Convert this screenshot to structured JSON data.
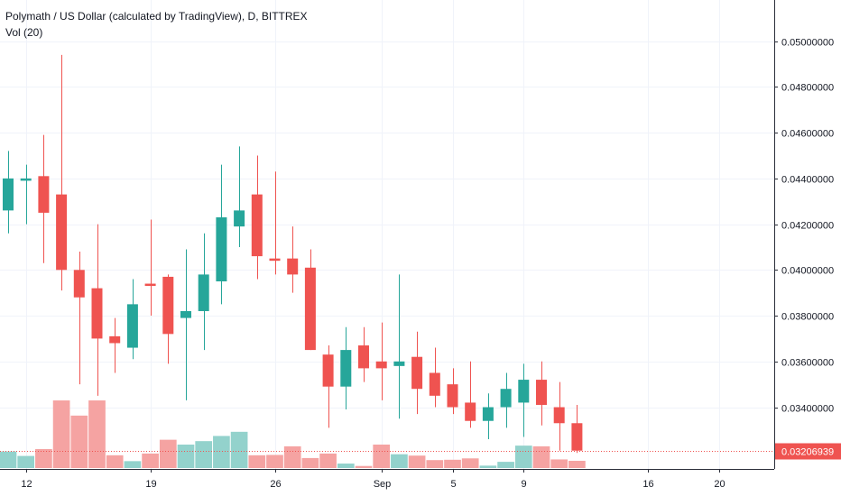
{
  "header": {
    "title": "Polymath / US Dollar (calculated by TradingView), D, BITTREX",
    "volume_label": "Vol (20)"
  },
  "colors": {
    "up": "#26a69a",
    "down": "#ef5350",
    "up_volume": "#93d2cc",
    "down_volume": "#f5a3a2",
    "grid": "#f0f3fa",
    "axis_line": "#2a2e39",
    "last_price_bg": "#ef5350"
  },
  "chart_data": {
    "type": "candlestick",
    "series": [
      {
        "name": "Polymath / US Dollar (calculated by TradingView), D, BITTREX",
        "data": [
          {
            "o": 0.0426,
            "h": 0.0452,
            "l": 0.0416,
            "c": 0.044,
            "v": 0.48
          },
          {
            "o": 0.0439,
            "h": 0.0446,
            "l": 0.042,
            "c": 0.044,
            "v": 0.35
          },
          {
            "o": 0.0441,
            "h": 0.0459,
            "l": 0.0403,
            "c": 0.0425,
            "v": 0.55
          },
          {
            "o": 0.0433,
            "h": 0.0494,
            "l": 0.0391,
            "c": 0.04,
            "v": 1.96
          },
          {
            "o": 0.04,
            "h": 0.0408,
            "l": 0.035,
            "c": 0.0388,
            "v": 1.52
          },
          {
            "o": 0.0392,
            "h": 0.042,
            "l": 0.0345,
            "c": 0.037,
            "v": 1.96
          },
          {
            "o": 0.0371,
            "h": 0.0379,
            "l": 0.0355,
            "c": 0.0368,
            "v": 0.37
          },
          {
            "o": 0.0366,
            "h": 0.0396,
            "l": 0.0361,
            "c": 0.0385,
            "v": 0.2
          },
          {
            "o": 0.0394,
            "h": 0.0422,
            "l": 0.038,
            "c": 0.0393,
            "v": 0.42
          },
          {
            "o": 0.0397,
            "h": 0.0398,
            "l": 0.0359,
            "c": 0.0372,
            "v": 0.82
          },
          {
            "o": 0.0379,
            "h": 0.0409,
            "l": 0.0343,
            "c": 0.0382,
            "v": 0.68
          },
          {
            "o": 0.0382,
            "h": 0.0416,
            "l": 0.0365,
            "c": 0.0398,
            "v": 0.78
          },
          {
            "o": 0.0395,
            "h": 0.0446,
            "l": 0.0385,
            "c": 0.0423,
            "v": 0.93
          },
          {
            "o": 0.0419,
            "h": 0.0454,
            "l": 0.041,
            "c": 0.0426,
            "v": 1.05
          },
          {
            "o": 0.0433,
            "h": 0.045,
            "l": 0.0396,
            "c": 0.0406,
            "v": 0.37
          },
          {
            "o": 0.0405,
            "h": 0.0443,
            "l": 0.0398,
            "c": 0.0404,
            "v": 0.38
          },
          {
            "o": 0.0405,
            "h": 0.0419,
            "l": 0.039,
            "c": 0.0398,
            "v": 0.63
          },
          {
            "o": 0.0401,
            "h": 0.0409,
            "l": 0.0365,
            "c": 0.0365,
            "v": 0.29
          },
          {
            "o": 0.0363,
            "h": 0.0367,
            "l": 0.0331,
            "c": 0.0349,
            "v": 0.42
          },
          {
            "o": 0.0349,
            "h": 0.0375,
            "l": 0.0339,
            "c": 0.0365,
            "v": 0.13
          },
          {
            "o": 0.0367,
            "h": 0.0375,
            "l": 0.0351,
            "c": 0.0357,
            "v": 0.06
          },
          {
            "o": 0.036,
            "h": 0.0377,
            "l": 0.0343,
            "c": 0.0357,
            "v": 0.68
          },
          {
            "o": 0.0358,
            "h": 0.0398,
            "l": 0.0335,
            "c": 0.036,
            "v": 0.4
          },
          {
            "o": 0.0362,
            "h": 0.0373,
            "l": 0.0337,
            "c": 0.0348,
            "v": 0.36
          },
          {
            "o": 0.0355,
            "h": 0.0366,
            "l": 0.034,
            "c": 0.0345,
            "v": 0.23
          },
          {
            "o": 0.035,
            "h": 0.0357,
            "l": 0.0337,
            "c": 0.034,
            "v": 0.24
          },
          {
            "o": 0.0342,
            "h": 0.036,
            "l": 0.0331,
            "c": 0.0334,
            "v": 0.28
          },
          {
            "o": 0.0334,
            "h": 0.0346,
            "l": 0.0326,
            "c": 0.034,
            "v": 0.07
          },
          {
            "o": 0.034,
            "h": 0.0355,
            "l": 0.0331,
            "c": 0.0348,
            "v": 0.18
          },
          {
            "o": 0.0342,
            "h": 0.0359,
            "l": 0.0327,
            "c": 0.0352,
            "v": 0.65
          },
          {
            "o": 0.0352,
            "h": 0.036,
            "l": 0.0332,
            "c": 0.0341,
            "v": 0.63
          },
          {
            "o": 0.034,
            "h": 0.0351,
            "l": 0.0321,
            "c": 0.0333,
            "v": 0.25
          },
          {
            "o": 0.0333,
            "h": 0.0341,
            "l": 0.032,
            "c": 0.0321,
            "v": 0.21
          }
        ]
      }
    ],
    "x_ticks": [
      {
        "index": 1,
        "label": "12"
      },
      {
        "index": 8,
        "label": "19"
      },
      {
        "index": 15,
        "label": "26"
      },
      {
        "index": 21,
        "label": "Sep"
      },
      {
        "index": 25,
        "label": "5"
      },
      {
        "index": 29,
        "label": "9"
      },
      {
        "index": 36,
        "label": "16"
      },
      {
        "index": 40,
        "label": "20"
      }
    ],
    "x_count": 43,
    "y_ticks": [
      0.034,
      0.036,
      0.038,
      0.04,
      0.042,
      0.044,
      0.046,
      0.048,
      0.05
    ],
    "ylim": [
      0.0313,
      0.0518
    ],
    "volume_max": 2.3,
    "last_price": "0.03206939",
    "last_price_value": 0.03206939,
    "grid": true
  }
}
